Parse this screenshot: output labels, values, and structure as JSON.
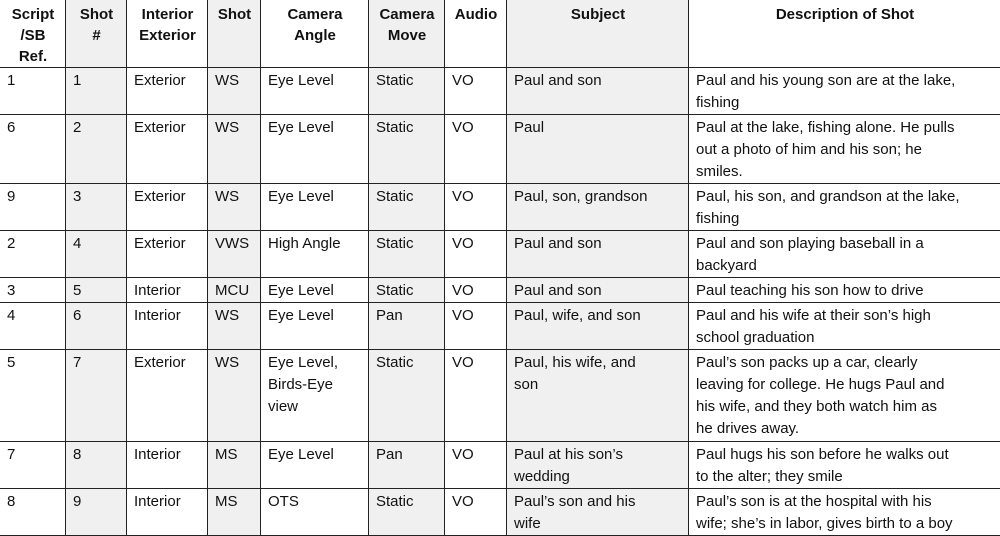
{
  "headers": [
    "Script\n/SB\nRef.",
    "Shot\n#",
    "Interior\nExterior",
    "Shot",
    "Camera\nAngle",
    "Camera\nMove",
    "Audio",
    "Subject",
    "Description of Shot"
  ],
  "rows": [
    {
      "cells": [
        "1",
        "1",
        "Exterior",
        "WS",
        "Eye Level",
        "Static",
        "VO",
        "Paul and son",
        "Paul and his young son are at the lake,\nfishing"
      ]
    },
    {
      "cells": [
        "6",
        "2",
        "Exterior",
        "WS",
        "Eye Level",
        "Static",
        "VO",
        "Paul",
        "Paul at the lake, fishing alone. He pulls\nout a photo of him and his son; he\nsmiles."
      ]
    },
    {
      "cells": [
        "9",
        "3",
        "Exterior",
        "WS",
        "Eye Level",
        "Static",
        "VO",
        "Paul, son, grandson",
        "Paul, his son, and grandson at the lake,\nfishing"
      ]
    },
    {
      "cells": [
        "2",
        "4",
        "Exterior",
        "VWS",
        "High Angle",
        "Static",
        "VO",
        "Paul and son",
        "Paul and son playing baseball in a\nbackyard"
      ]
    },
    {
      "cells": [
        "3",
        "5",
        "Interior",
        "MCU",
        "Eye Level",
        "Static",
        "VO",
        "Paul and son",
        "Paul teaching his son how to drive"
      ]
    },
    {
      "cells": [
        "4",
        "6",
        "Interior",
        "WS",
        "Eye Level",
        "Pan",
        "VO",
        "Paul, wife, and son",
        "Paul and his wife at their son’s high\nschool graduation"
      ]
    },
    {
      "cells": [
        "5",
        "7",
        "Exterior",
        "WS",
        "Eye Level,\nBirds-Eye\nview",
        "Static",
        "VO",
        "Paul, his wife, and\nson",
        "Paul’s son packs up a car, clearly\nleaving for college. He hugs Paul and\nhis wife, and they both watch him as\nhe drives away."
      ]
    },
    {
      "cells": [
        "7",
        "8",
        "Interior",
        "MS",
        "Eye Level",
        "Pan",
        "VO",
        "Paul at his son’s\nwedding",
        "Paul hugs his son before he walks out\nto the alter; they smile"
      ]
    },
    {
      "cells": [
        "8",
        "9",
        "Interior",
        "MS",
        "OTS",
        "Static",
        "VO",
        "Paul’s son and his\nwife",
        "Paul’s son is at the hospital with his\nwife; she’s in labor, gives birth to a boy"
      ]
    }
  ]
}
